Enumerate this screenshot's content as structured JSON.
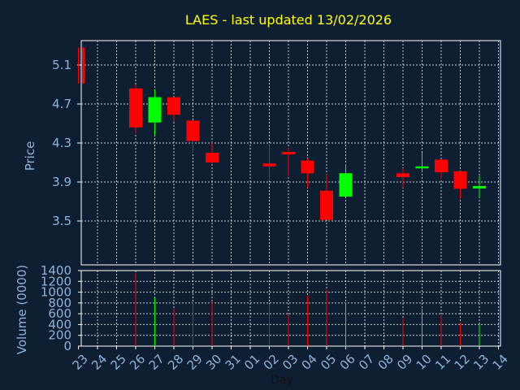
{
  "chart_data": {
    "type": "candlestick",
    "title": "LAES - last updated 13/02/2026",
    "ylabel": "Price",
    "volume_ylabel": "Volume (0000)",
    "xlabel": "Day",
    "ylim": [
      3.05,
      5.35
    ],
    "yticks": [
      "5.1",
      "4.7",
      "4.3",
      "3.9",
      "3.5"
    ],
    "volume_ylim": [
      0,
      1400
    ],
    "volume_yticks": [
      "1400",
      "1200",
      "1000",
      "800",
      "600",
      "400",
      "200",
      "0"
    ],
    "x_ticks": [
      "23",
      "24",
      "25",
      "26",
      "27",
      "28",
      "29",
      "30",
      "31",
      "01",
      "02",
      "03",
      "04",
      "05",
      "06",
      "07",
      "08",
      "09",
      "10",
      "11",
      "12",
      "13",
      "14"
    ],
    "grid": true,
    "up_color": "#00ff00",
    "down_color": "#ff0000",
    "candles": [
      {
        "day": "23",
        "open": 5.28,
        "high": 5.28,
        "low": 4.91,
        "close": 4.91,
        "volume": 0
      },
      {
        "day": "26",
        "open": 4.86,
        "high": 4.9,
        "low": 4.4,
        "close": 4.46,
        "volume": 1350
      },
      {
        "day": "27",
        "open": 4.51,
        "high": 4.85,
        "low": 4.38,
        "close": 4.77,
        "volume": 900
      },
      {
        "day": "28",
        "open": 4.77,
        "high": 4.77,
        "low": 4.52,
        "close": 4.59,
        "volume": 700
      },
      {
        "day": "29",
        "open": 4.53,
        "high": 4.53,
        "low": 4.2,
        "close": 4.32,
        "volume": 820
      },
      {
        "day": "30",
        "open": 4.2,
        "high": 4.31,
        "low": 4.09,
        "close": 4.1,
        "volume": 830
      },
      {
        "day": "02",
        "open": 4.09,
        "high": 4.28,
        "low": 3.91,
        "close": 4.06,
        "volume": 780
      },
      {
        "day": "03",
        "open": 4.2,
        "high": 4.25,
        "low": 3.96,
        "close": 4.19,
        "volume": 590
      },
      {
        "day": "04",
        "open": 4.12,
        "high": 4.14,
        "low": 3.84,
        "close": 3.99,
        "volume": 930
      },
      {
        "day": "05",
        "open": 3.81,
        "high": 3.98,
        "low": 3.51,
        "close": 3.51,
        "volume": 1050
      },
      {
        "day": "06",
        "open": 3.75,
        "high": 4.08,
        "low": 3.75,
        "close": 3.99,
        "volume": 800
      },
      {
        "day": "09",
        "open": 3.99,
        "high": 4.04,
        "low": 3.84,
        "close": 3.95,
        "volume": 520
      },
      {
        "day": "10",
        "open": 4.04,
        "high": 4.2,
        "low": 4.01,
        "close": 4.06,
        "volume": 690
      },
      {
        "day": "11",
        "open": 4.13,
        "high": 4.13,
        "low": 3.93,
        "close": 4.0,
        "volume": 570
      },
      {
        "day": "12",
        "open": 4.01,
        "high": 4.01,
        "low": 3.73,
        "close": 3.83,
        "volume": 430
      },
      {
        "day": "13",
        "open": 3.85,
        "high": 3.96,
        "low": 3.74,
        "close": 3.85,
        "volume": 410
      }
    ]
  }
}
